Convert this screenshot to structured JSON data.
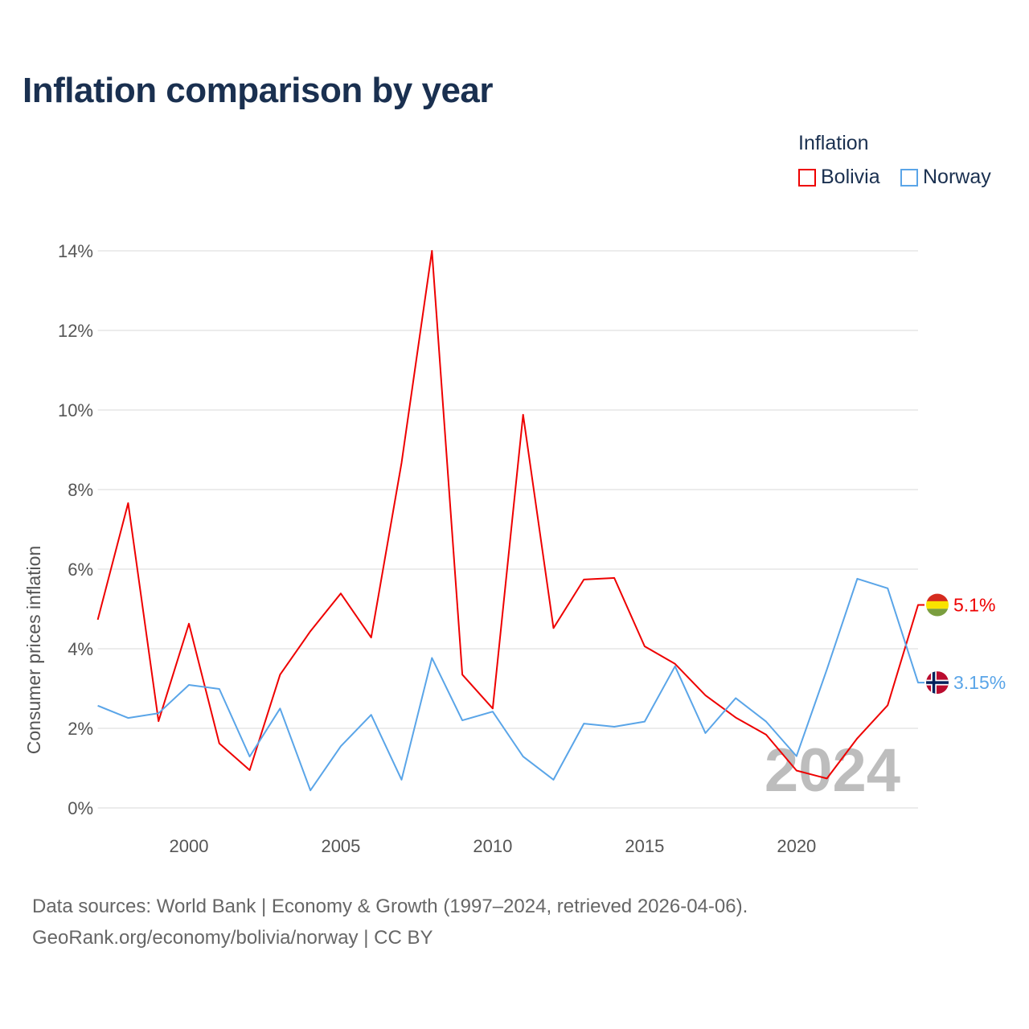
{
  "chart_data": {
    "type": "line",
    "title": "Inflation comparison by year",
    "legend_title": "Inflation",
    "legend_placement": "top-right",
    "xlabel": "",
    "ylabel": "Consumer prices inflation",
    "xlim": [
      1997,
      2024
    ],
    "ylim": [
      0,
      14
    ],
    "yticks": [
      "0%",
      "2%",
      "4%",
      "6%",
      "8%",
      "10%",
      "12%",
      "14%"
    ],
    "xticks": [
      "2000",
      "2005",
      "2010",
      "2015",
      "2020"
    ],
    "grid": true,
    "watermark_year": "2024",
    "x": [
      1997,
      1998,
      1999,
      2000,
      2001,
      2002,
      2003,
      2004,
      2005,
      2006,
      2007,
      2008,
      2009,
      2010,
      2011,
      2012,
      2013,
      2014,
      2015,
      2016,
      2017,
      2018,
      2019,
      2020,
      2021,
      2022,
      2023,
      2024
    ],
    "series": [
      {
        "name": "Bolivia",
        "color": "#ee0000",
        "end_label": "5.1%",
        "values": [
          4.73,
          7.66,
          2.18,
          4.63,
          1.62,
          0.95,
          3.35,
          4.44,
          5.39,
          4.28,
          8.67,
          14.0,
          3.35,
          2.5,
          9.88,
          4.52,
          5.74,
          5.78,
          4.06,
          3.62,
          2.83,
          2.27,
          1.84,
          0.94,
          0.74,
          1.75,
          2.58,
          5.1
        ]
      },
      {
        "name": "Norway",
        "color": "#5aa5e8",
        "end_label": "3.15%",
        "values": [
          2.57,
          2.26,
          2.38,
          3.09,
          2.99,
          1.29,
          2.5,
          0.44,
          1.55,
          2.34,
          0.71,
          3.77,
          2.2,
          2.42,
          1.29,
          0.71,
          2.12,
          2.04,
          2.17,
          3.56,
          1.88,
          2.76,
          2.17,
          1.3,
          3.48,
          5.76,
          5.52,
          3.15
        ]
      }
    ]
  },
  "source_line1": "Data sources: World Bank | Economy & Growth (1997–2024, retrieved 2026-04-06).",
  "source_line2": "GeoRank.org/economy/bolivia/norway | CC BY"
}
